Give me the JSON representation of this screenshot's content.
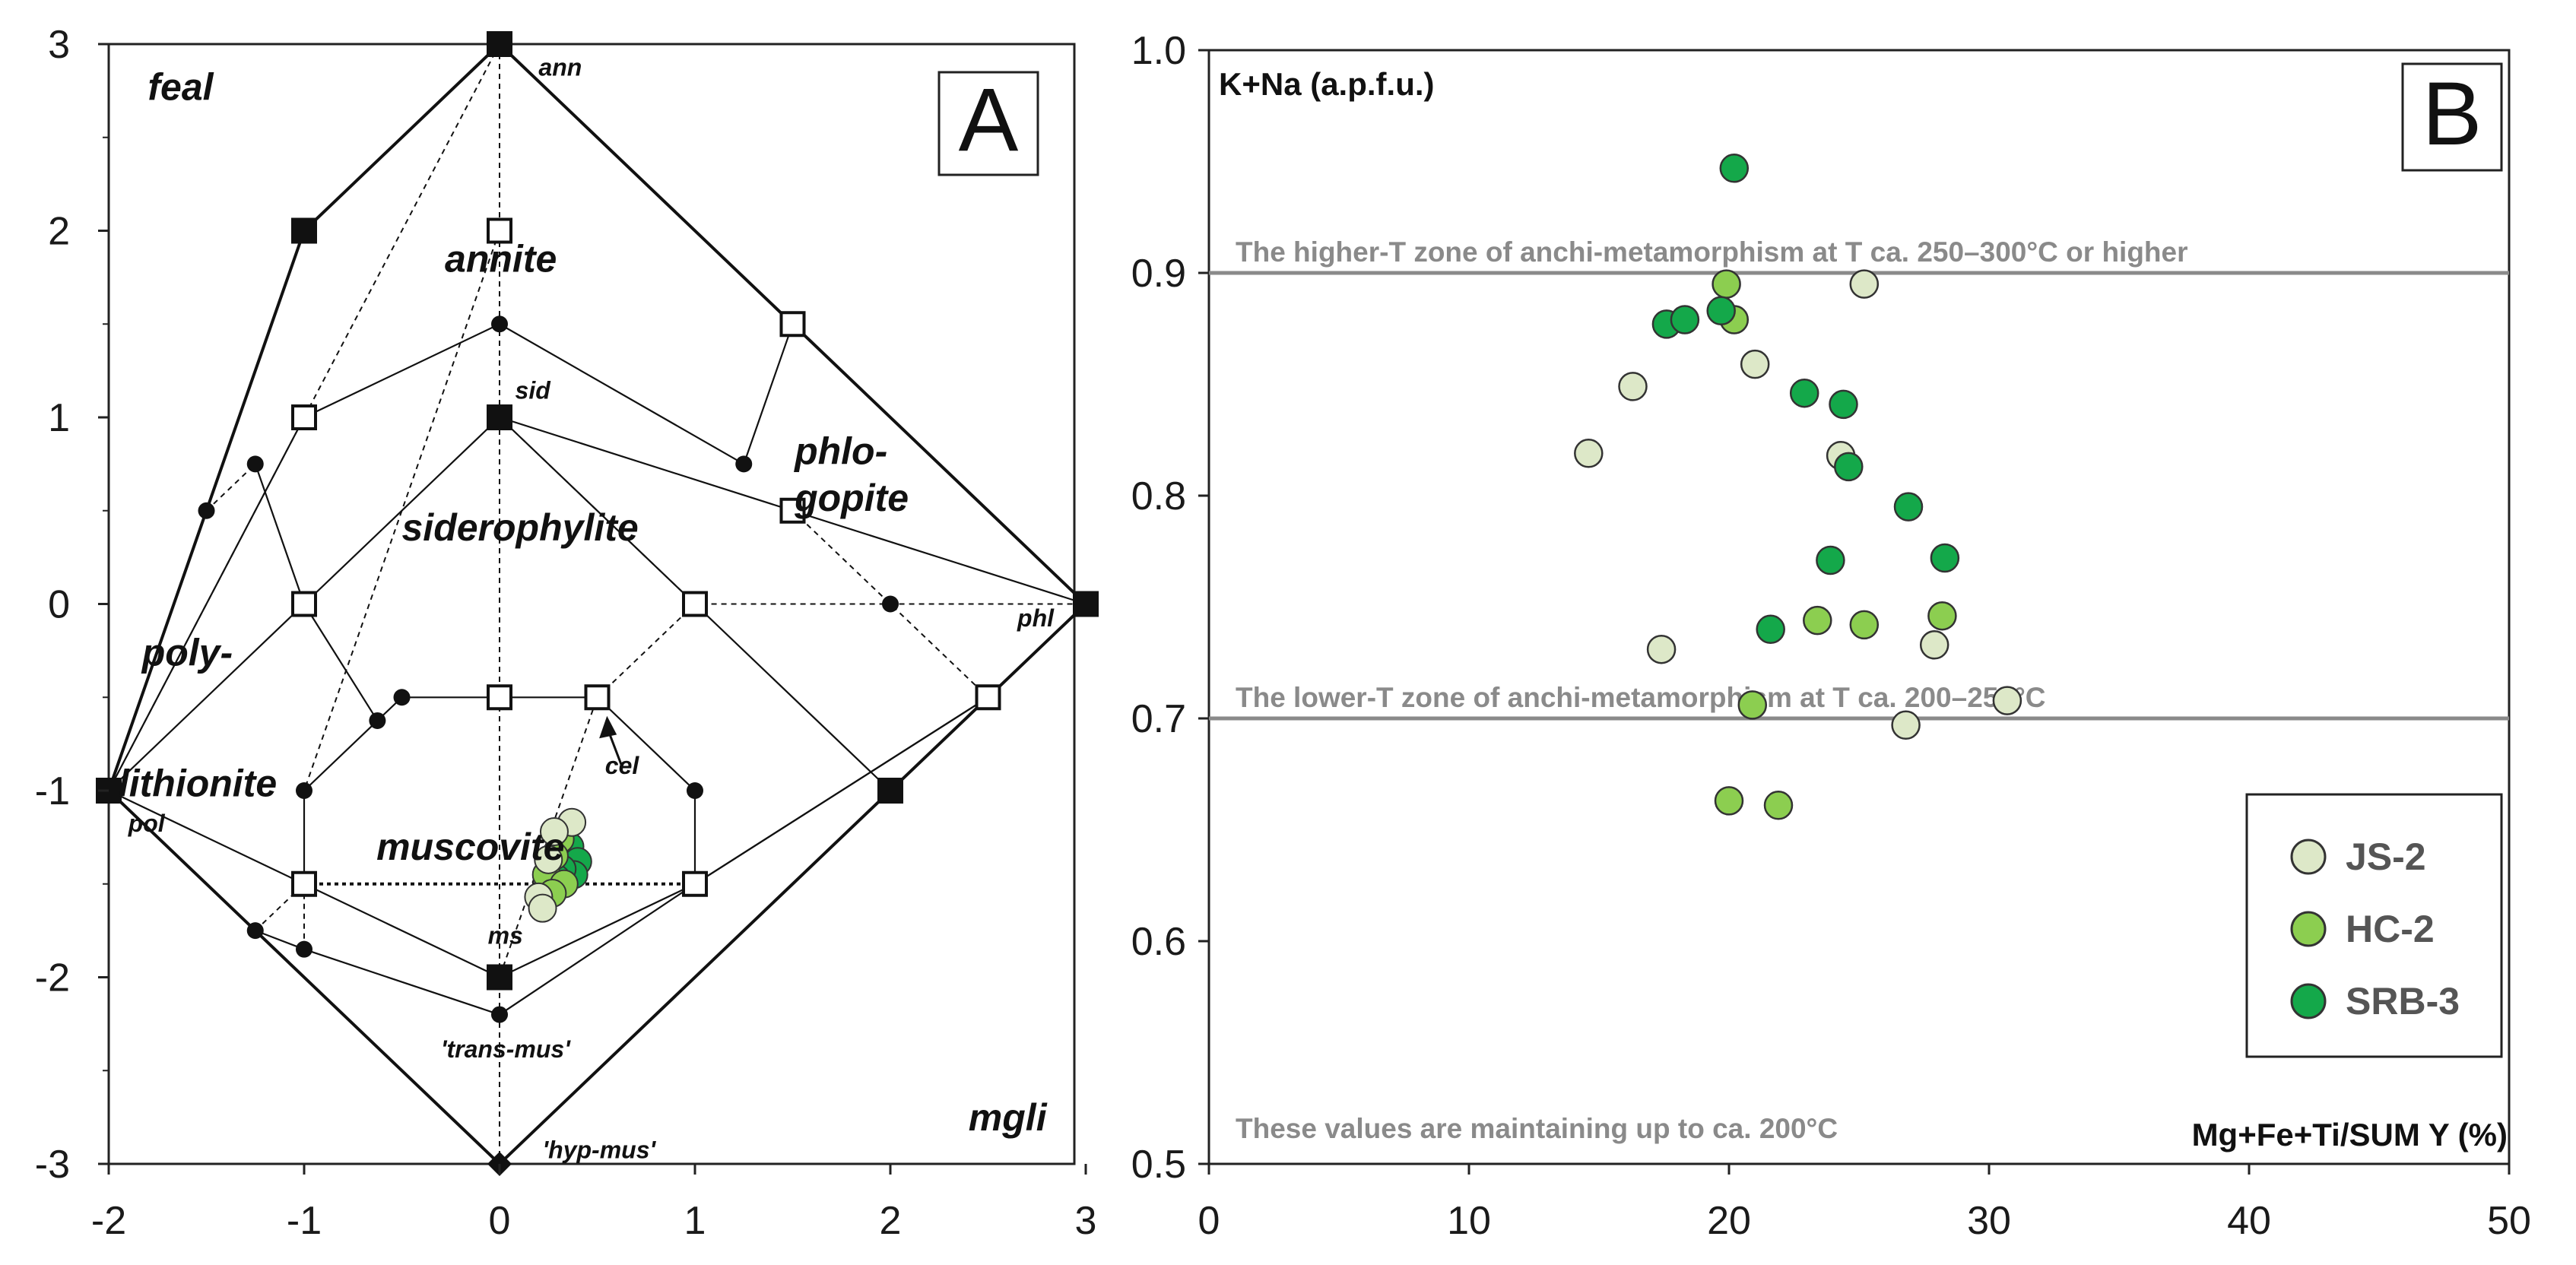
{
  "chart_data": [
    {
      "type": "scatter",
      "panel_label": "A",
      "x_ticks": [
        "-2",
        "-1",
        "0",
        "1",
        "2",
        "3"
      ],
      "y_ticks": [
        "3",
        "2",
        "1",
        "0",
        "-1",
        "-2",
        "-3"
      ],
      "xlim": [
        -2,
        3
      ],
      "ylim": [
        -3,
        3
      ],
      "field_labels": [
        {
          "text": "feal",
          "x": -1.8,
          "y": 2.7,
          "size": "large"
        },
        {
          "text": "annite",
          "x": -0.28,
          "y": 1.78,
          "size": "large"
        },
        {
          "text": "phlo-",
          "x": 1.51,
          "y": 0.75,
          "size": "large"
        },
        {
          "text": "gopite",
          "x": 1.51,
          "y": 0.5,
          "size": "large"
        },
        {
          "text": "siderophylite",
          "x": -0.5,
          "y": 0.34,
          "size": "large"
        },
        {
          "text": "poly-",
          "x": -1.83,
          "y": -0.33,
          "size": "large"
        },
        {
          "text": "lithionite",
          "x": -1.95,
          "y": -1.03,
          "size": "large"
        },
        {
          "text": "muscovite",
          "x": -0.63,
          "y": -1.37,
          "size": "large"
        },
        {
          "text": "mgli",
          "x": 2.4,
          "y": -2.82,
          "size": "large"
        },
        {
          "text": "ann",
          "x": 0.2,
          "y": 2.83,
          "size": "small"
        },
        {
          "text": "sid",
          "x": 0.08,
          "y": 1.1,
          "size": "small"
        },
        {
          "text": "phl",
          "x": 2.65,
          "y": -0.12,
          "size": "small"
        },
        {
          "text": "pol",
          "x": -1.9,
          "y": -1.22,
          "size": "small"
        },
        {
          "text": "cel",
          "x": 0.54,
          "y": -0.91,
          "size": "small"
        },
        {
          "text": "ms",
          "x": -0.06,
          "y": -1.82,
          "size": "small"
        },
        {
          "text": "'trans-mus'",
          "x": -0.3,
          "y": -2.43,
          "size": "small"
        },
        {
          "text": "'hyp-mus'",
          "x": 0.22,
          "y": -2.97,
          "size": "small"
        }
      ],
      "filled_squares": [
        [
          0,
          3
        ],
        [
          -1,
          2
        ],
        [
          0,
          1
        ],
        [
          3,
          0
        ],
        [
          -2,
          -1
        ],
        [
          2,
          -1
        ],
        [
          0,
          -2
        ]
      ],
      "open_squares": [
        [
          0,
          2
        ],
        [
          1.5,
          1.5
        ],
        [
          -1,
          1
        ],
        [
          1.5,
          0.5
        ],
        [
          -1,
          0
        ],
        [
          1,
          0
        ],
        [
          0,
          -0.5
        ],
        [
          0.5,
          -0.5
        ],
        [
          2.5,
          -0.5
        ],
        [
          -1,
          -1.5
        ],
        [
          1,
          -1.5
        ]
      ],
      "circles": [
        [
          0,
          1.5
        ],
        [
          -1.5,
          0.5
        ],
        [
          -1.25,
          0.75
        ],
        [
          1.25,
          0.75
        ],
        [
          2,
          0
        ],
        [
          -0.5,
          -0.5
        ],
        [
          -0.625,
          -0.625
        ],
        [
          -1,
          -1
        ],
        [
          1,
          -1
        ],
        [
          -1.25,
          -1.75
        ],
        [
          -1,
          -1.85
        ],
        [
          0,
          -2.2
        ]
      ],
      "diamond": [
        0,
        -3
      ],
      "samples": [
        {
          "name": "JS-2",
          "points": [
            [
              0.37,
              -1.17
            ],
            [
              0.28,
              -1.22
            ],
            [
              0.2,
              -1.57
            ],
            [
              0.22,
              -1.63
            ],
            [
              0.25,
              -1.37
            ]
          ]
        },
        {
          "name": "HC-2",
          "points": [
            [
              0.31,
              -1.26
            ],
            [
              0.28,
              -1.35
            ],
            [
              0.24,
              -1.45
            ],
            [
              0.33,
              -1.5
            ],
            [
              0.27,
              -1.55
            ]
          ]
        },
        {
          "name": "SRB-3",
          "points": [
            [
              0.36,
              -1.3
            ],
            [
              0.4,
              -1.38
            ],
            [
              0.38,
              -1.45
            ],
            [
              0.32,
              -1.42
            ],
            [
              0.29,
              -1.47
            ]
          ]
        }
      ]
    },
    {
      "type": "scatter",
      "panel_label": "B",
      "ylabel": "K+Na (a.p.f.u.)",
      "xlabel": "Mg+Fe+Ti/SUM Y (%)",
      "xlim": [
        0,
        50
      ],
      "ylim": [
        0.5,
        1.0
      ],
      "x_ticks": [
        "0",
        "10",
        "20",
        "30",
        "40",
        "50"
      ],
      "y_ticks": [
        "1.0",
        "0.9",
        "0.8",
        "0.7",
        "0.6",
        "0.5"
      ],
      "reference_lines": [
        {
          "y": 0.9,
          "label": "The higher-T zone of anchi-metamorphism at T ca. 250–300°C or higher"
        },
        {
          "y": 0.7,
          "label": "The lower-T zone of anchi-metamorphism at T ca. 200–250°C"
        }
      ],
      "bottom_note": "These values are maintaining up to ca. 200°C",
      "series": [
        {
          "name": "JS-2",
          "color": "#dde8c8",
          "points": [
            [
              25.2,
              0.895
            ],
            [
              21.0,
              0.859
            ],
            [
              16.3,
              0.849
            ],
            [
              14.6,
              0.819
            ],
            [
              24.3,
              0.818
            ],
            [
              17.4,
              0.731
            ],
            [
              27.9,
              0.733
            ],
            [
              26.8,
              0.697
            ],
            [
              30.7,
              0.708
            ]
          ]
        },
        {
          "name": "HC-2",
          "color": "#8cce50",
          "points": [
            [
              19.9,
              0.895
            ],
            [
              20.2,
              0.879
            ],
            [
              23.4,
              0.744
            ],
            [
              25.2,
              0.742
            ],
            [
              28.2,
              0.746
            ],
            [
              20.9,
              0.706
            ],
            [
              20.0,
              0.663
            ],
            [
              21.9,
              0.661
            ]
          ]
        },
        {
          "name": "SRB-3",
          "color": "#14a84a",
          "points": [
            [
              20.2,
              0.947
            ],
            [
              17.6,
              0.877
            ],
            [
              18.3,
              0.879
            ],
            [
              19.7,
              0.883
            ],
            [
              22.9,
              0.846
            ],
            [
              24.4,
              0.841
            ],
            [
              24.6,
              0.813
            ],
            [
              26.9,
              0.795
            ],
            [
              23.9,
              0.771
            ],
            [
              28.3,
              0.772
            ],
            [
              21.6,
              0.74
            ]
          ]
        }
      ]
    }
  ]
}
